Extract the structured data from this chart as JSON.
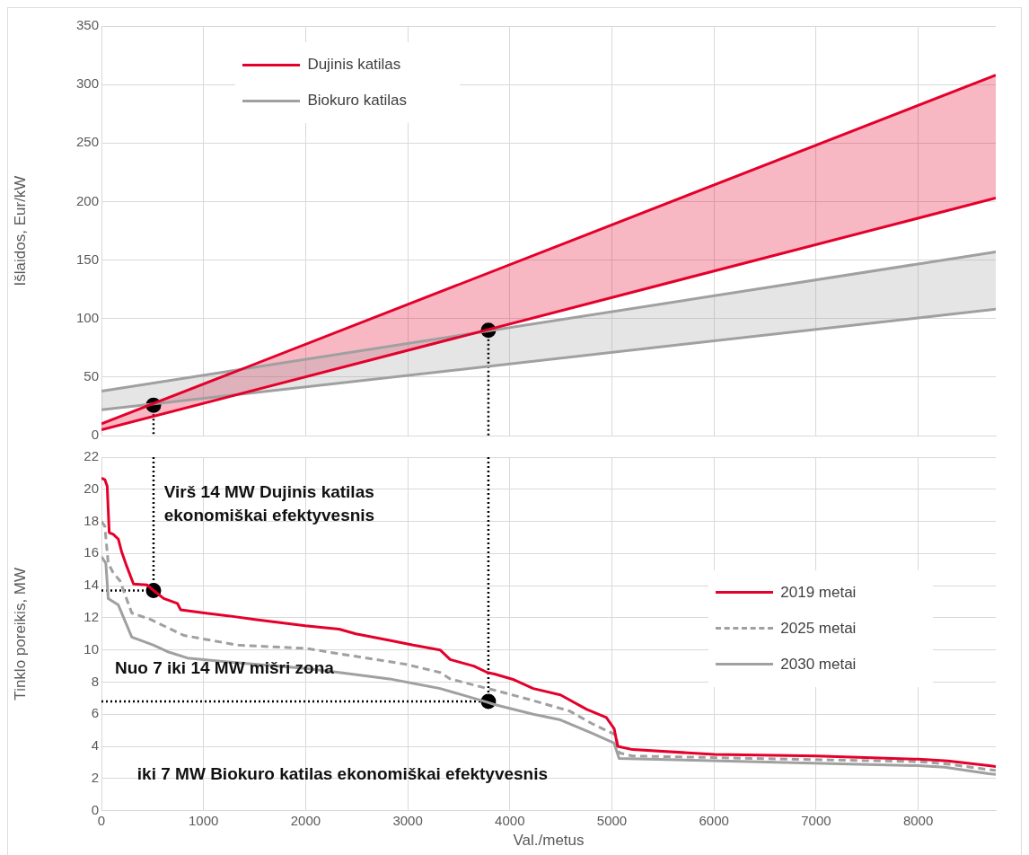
{
  "chart_data": [
    {
      "type": "line",
      "ylabel": "Išlaidos, Eur/kW",
      "xlim": [
        0,
        8760
      ],
      "xticks": [
        0,
        1000,
        2000,
        3000,
        4000,
        5000,
        6000,
        7000,
        8000
      ],
      "ylim": [
        0,
        350
      ],
      "yticks": [
        0,
        50,
        100,
        150,
        200,
        250,
        300,
        350
      ],
      "tick_labels": "y",
      "grid": true,
      "legend": "top left",
      "series": [
        {
          "name": "Dujinis katilas",
          "color": "#e4002b",
          "x": [
            0,
            8760
          ],
          "values": [
            10,
            308
          ],
          "line_style": "solid",
          "marker": "none"
        },
        {
          "color": "#e4002b",
          "x": [
            0,
            8760
          ],
          "values": [
            5,
            203
          ],
          "lower": [
            5,
            203
          ],
          "upper": [
            10,
            308
          ],
          "line_style": "solid",
          "marker": "none"
        },
        {
          "name": "Biokuro katilas",
          "color": "#a0a0a0",
          "x": [
            0,
            8760
          ],
          "values": [
            38,
            157
          ],
          "line_style": "solid",
          "marker": "none"
        },
        {
          "color": "#a0a0a0",
          "x": [
            0,
            8760
          ],
          "values": [
            22,
            108
          ],
          "lower": [
            22,
            108
          ],
          "upper": [
            38,
            157
          ],
          "line_style": "solid",
          "marker": "none"
        },
        {
          "color": "#000000",
          "x": [
            510,
            510
          ],
          "values": [
            26,
            0
          ],
          "line_style": "dotted",
          "marker": "none"
        },
        {
          "color": "#000000",
          "x": [
            3790,
            3790
          ],
          "values": [
            90,
            0
          ],
          "line_style": "dotted",
          "marker": "none"
        },
        {
          "type": "scatter",
          "color": "#000000",
          "x": [
            510,
            3790
          ],
          "values": [
            26,
            90
          ],
          "marker": "circle"
        }
      ]
    },
    {
      "type": "line",
      "xlabel": "Val./metus",
      "ylabel": "Tinklo poreikis, MW",
      "xlim": [
        0,
        8760
      ],
      "xticks": [
        0,
        1000,
        2000,
        3000,
        4000,
        5000,
        6000,
        7000,
        8000
      ],
      "ylim": [
        0,
        22
      ],
      "yticks": [
        0,
        2,
        4,
        6,
        8,
        10,
        12,
        14,
        16,
        18,
        20,
        22
      ],
      "grid": true,
      "legend": "right",
      "annotations": [
        "Virš 14 MW Dujinis katilas\nekonomiškai efektyvesnis",
        "Nuo 7 iki 14 MW mišri zona",
        "iki 7 MW Biokuro katilas ekonomiškai efektyvesnis"
      ],
      "series": [
        {
          "name": "2019 metai",
          "color": "#e4002b",
          "line_style": "solid",
          "marker": "none",
          "x": [
            0,
            33,
            56,
            76,
            115,
            165,
            198,
            248,
            314,
            446,
            511,
            610,
            743,
            776,
            1007,
            1271,
            1502,
            1997,
            2327,
            2492,
            2822,
            3053,
            3317,
            3416,
            3647,
            3779,
            3850,
            4040,
            4229,
            4496,
            4754,
            4945,
            5022,
            5056,
            5202,
            6003,
            7003,
            8002,
            8290,
            8693,
            8760
          ],
          "values": [
            20.7,
            20.6,
            20.2,
            17.3,
            17.2,
            16.9,
            16.1,
            15.2,
            14.1,
            14.05,
            13.7,
            13.2,
            12.9,
            12.5,
            12.3,
            12.1,
            11.9,
            11.5,
            11.3,
            11.0,
            10.6,
            10.3,
            10.0,
            9.4,
            9.0,
            8.6,
            8.5,
            8.15,
            7.6,
            7.2,
            6.3,
            5.8,
            5.1,
            4.0,
            3.8,
            3.5,
            3.4,
            3.2,
            3.1,
            2.8,
            2.75
          ]
        },
        {
          "name": "2025 metai",
          "color": "#a0a0a0",
          "line_style": "dashed",
          "marker": "none",
          "x": [
            0,
            33,
            66,
            115,
            182,
            297,
            479,
            809,
            1337,
            1997,
            2492,
            2987,
            3317,
            3416,
            3779,
            3850,
            4229,
            4584,
            4810,
            5040,
            5070,
            5202,
            8002,
            8290,
            8693,
            8760
          ],
          "values": [
            18.0,
            17.7,
            15.4,
            14.8,
            14.3,
            12.3,
            11.9,
            10.9,
            10.3,
            10.1,
            9.6,
            9.1,
            8.6,
            8.2,
            7.6,
            7.5,
            6.85,
            6.2,
            5.4,
            4.7,
            3.6,
            3.4,
            3.05,
            2.9,
            2.55,
            2.5
          ]
        },
        {
          "name": "2030 metai",
          "color": "#a0a0a0",
          "line_style": "solid",
          "marker": "none",
          "x": [
            0,
            43,
            66,
            165,
            297,
            511,
            644,
            842,
            1337,
            1997,
            2327,
            2822,
            3317,
            3779,
            3850,
            4229,
            4496,
            4810,
            5022,
            5070,
            8002,
            8260,
            8693,
            8760
          ],
          "values": [
            15.8,
            15.4,
            13.2,
            12.8,
            10.8,
            10.3,
            9.9,
            9.5,
            9.2,
            8.85,
            8.6,
            8.2,
            7.6,
            6.75,
            6.6,
            6.0,
            5.65,
            4.8,
            4.2,
            3.25,
            2.8,
            2.7,
            2.3,
            2.25
          ]
        },
        {
          "color": "#000000",
          "x": [
            0,
            510
          ],
          "values": [
            13.7,
            13.7
          ],
          "line_style": "dotted",
          "marker": "none"
        },
        {
          "color": "#000000",
          "x": [
            510,
            510
          ],
          "values": [
            22,
            13.7
          ],
          "line_style": "dotted",
          "marker": "none"
        },
        {
          "color": "#000000",
          "x": [
            0,
            3790
          ],
          "values": [
            6.8,
            6.8
          ],
          "line_style": "dotted",
          "marker": "none"
        },
        {
          "color": "#000000",
          "x": [
            3790,
            3790
          ],
          "values": [
            22,
            6.8
          ],
          "line_style": "dotted",
          "marker": "none"
        },
        {
          "type": "scatter",
          "color": "#000000",
          "x": [
            510,
            3790
          ],
          "values": [
            13.7,
            6.8
          ],
          "marker": "circle"
        }
      ]
    }
  ]
}
